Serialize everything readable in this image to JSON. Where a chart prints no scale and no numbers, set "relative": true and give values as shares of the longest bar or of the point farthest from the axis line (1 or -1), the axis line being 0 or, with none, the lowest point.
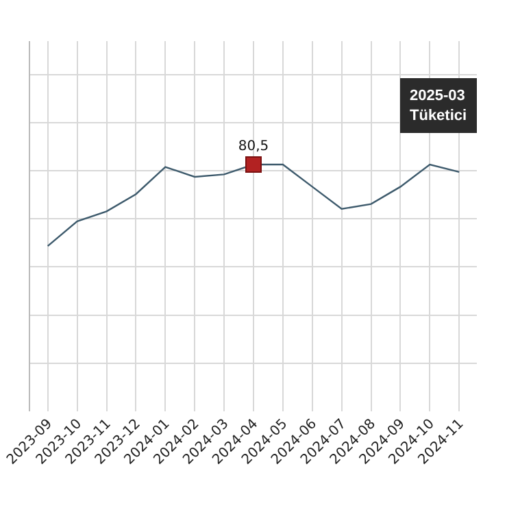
{
  "chart_data": {
    "type": "line",
    "relative": true,
    "grid": true,
    "marker": "none",
    "categories": [
      "2023-09",
      "2023-10",
      "2023-11",
      "2023-12",
      "2024-01",
      "2024-02",
      "2024-03",
      "2024-04",
      "2024-05",
      "2024-06",
      "2024-07",
      "2024-08",
      "2024-09",
      "2024-10",
      "2024-11"
    ],
    "series": [
      {
        "color": "#3d5a6c",
        "values": [
          0.67,
          0.77,
          0.81,
          0.88,
          0.99,
          0.95,
          0.96,
          1,
          1,
          0.91,
          0.82,
          0.84,
          0.91,
          1,
          0.97
        ]
      }
    ],
    "annotations": [
      {
        "text": "80,5",
        "x": "2024-04",
        "y": 1
      },
      "2025-03",
      "Tüketici"
    ]
  }
}
